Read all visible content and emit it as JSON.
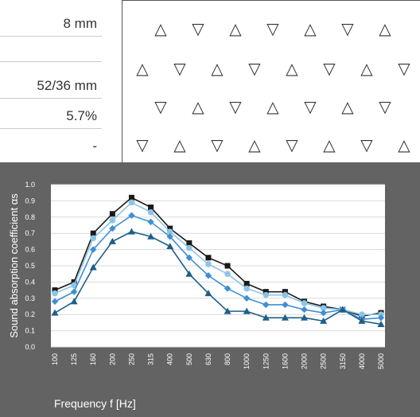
{
  "specs": [
    {
      "value": "8 mm",
      "line": true
    },
    {
      "value": "",
      "line": true
    },
    {
      "value": "52/36 mm",
      "line": true
    },
    {
      "value": "5.7%",
      "line": true
    },
    {
      "value": "-",
      "line": false
    }
  ],
  "pattern": {
    "symbol_up": "△",
    "symbol_down": "▽",
    "rows": [
      {
        "count": 7,
        "start": "up"
      },
      {
        "count": 8,
        "start": "up"
      },
      {
        "count": 7,
        "start": "down"
      },
      {
        "count": 8,
        "start": "down"
      }
    ]
  },
  "chart_data": {
    "type": "line",
    "title": "",
    "xlabel": "Frequency f [Hz]",
    "ylabel": "Sound absorption coefficient αs",
    "categories": [
      "100",
      "125",
      "160",
      "200",
      "250",
      "315",
      "400",
      "500",
      "630",
      "800",
      "1000",
      "1250",
      "1600",
      "2000",
      "2500",
      "3150",
      "4000",
      "5000"
    ],
    "ylim": [
      0,
      1.0
    ],
    "yticks": [
      "0.0",
      "0.1",
      "0.2",
      "0.3",
      "0.4",
      "0.5",
      "0.6",
      "0.7",
      "0.8",
      "0.9",
      "1.0"
    ],
    "grid": true,
    "series": [
      {
        "marker": "square",
        "color": "#1a1a1a",
        "values": [
          0.35,
          0.4,
          0.7,
          0.82,
          0.92,
          0.86,
          0.73,
          0.64,
          0.55,
          0.5,
          0.39,
          0.34,
          0.34,
          0.28,
          0.25,
          0.23,
          0.19,
          0.21
        ]
      },
      {
        "marker": "circle",
        "color": "#8cc4e8",
        "values": [
          0.33,
          0.38,
          0.67,
          0.78,
          0.89,
          0.83,
          0.71,
          0.61,
          0.51,
          0.45,
          0.36,
          0.32,
          0.32,
          0.27,
          0.24,
          0.23,
          0.2,
          0.2
        ]
      },
      {
        "marker": "diamond",
        "color": "#3f8fd4",
        "values": [
          0.28,
          0.34,
          0.6,
          0.73,
          0.81,
          0.77,
          0.68,
          0.55,
          0.44,
          0.36,
          0.3,
          0.26,
          0.26,
          0.23,
          0.21,
          0.23,
          0.17,
          0.18
        ]
      },
      {
        "marker": "triangle",
        "color": "#1d5f8a",
        "values": [
          0.21,
          0.28,
          0.49,
          0.65,
          0.71,
          0.68,
          0.62,
          0.45,
          0.33,
          0.22,
          0.22,
          0.18,
          0.18,
          0.18,
          0.16,
          0.23,
          0.16,
          0.14
        ]
      }
    ]
  }
}
